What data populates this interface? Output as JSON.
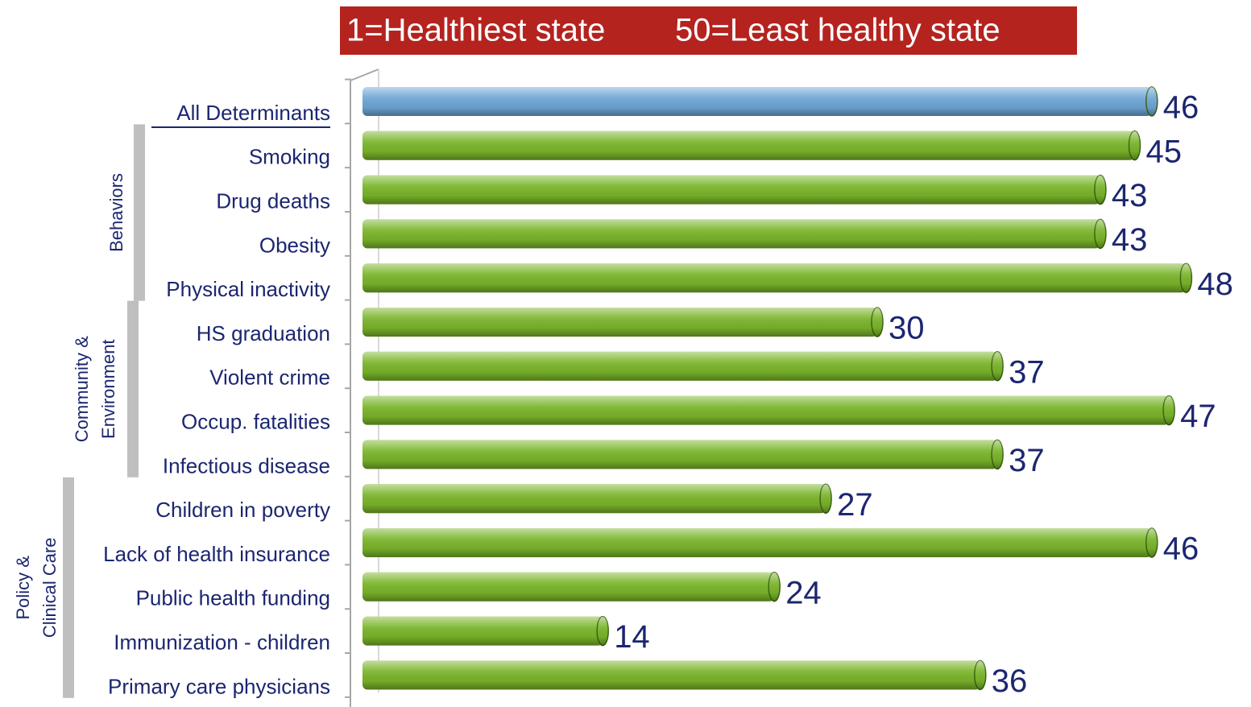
{
  "chart_data": {
    "type": "bar",
    "orientation": "horizontal",
    "legend_left": "1=Healthiest state",
    "legend_right": "50=Least healthy state",
    "categories": [
      "All Determinants",
      "Smoking",
      "Drug deaths",
      "Obesity",
      "Physical inactivity",
      "HS graduation",
      "Violent crime",
      "Occup. fatalities",
      "Infectious disease",
      "Children in poverty",
      "Lack of health insurance",
      "Public health funding",
      "Immunization - children",
      "Primary care physicians"
    ],
    "values": [
      46,
      45,
      43,
      43,
      48,
      30,
      37,
      47,
      37,
      27,
      46,
      24,
      14,
      36
    ],
    "colors": [
      "#6ea6d6",
      "#7ab52a",
      "#7ab52a",
      "#7ab52a",
      "#7ab52a",
      "#7ab52a",
      "#7ab52a",
      "#7ab52a",
      "#7ab52a",
      "#7ab52a",
      "#7ab52a",
      "#7ab52a",
      "#7ab52a",
      "#7ab52a"
    ],
    "xlim": [
      0,
      50
    ],
    "groups": [
      {
        "lines": [
          "Behaviors"
        ],
        "first": 1,
        "last": 4
      },
      {
        "lines": [
          "Community &",
          "Environment"
        ],
        "first": 5,
        "last": 8
      },
      {
        "lines": [
          "Policy &",
          "Clinical Care"
        ],
        "first": 9,
        "last": 13
      }
    ]
  }
}
